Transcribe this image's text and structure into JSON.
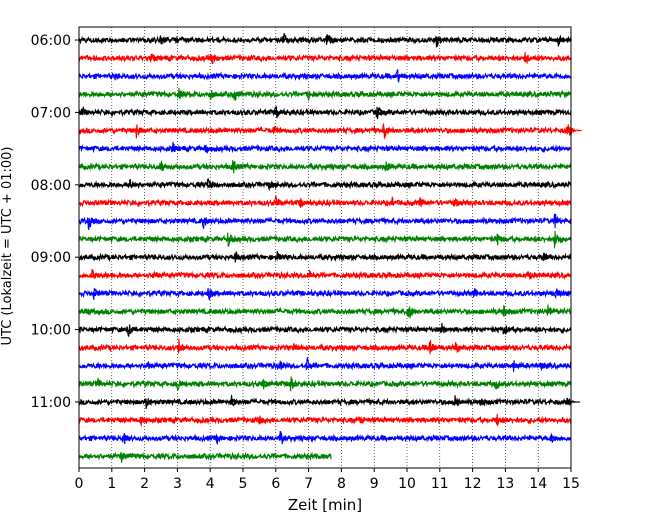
{
  "chart_data": {
    "type": "line",
    "title": "",
    "xlabel": "Zeit  [min]",
    "ylabel": "UTC (Lokalzeit = UTC + 01:00)",
    "xlim": [
      0,
      15
    ],
    "x_ticks": [
      "0",
      "1",
      "2",
      "3",
      "4",
      "5",
      "6",
      "7",
      "8",
      "9",
      "10",
      "11",
      "12",
      "13",
      "14",
      "15"
    ],
    "y_ticks": [
      "06:00",
      "07:00",
      "08:00",
      "09:00",
      "10:00",
      "11:00"
    ],
    "grid": "vertical dotted at each minute",
    "legend": "none",
    "colors": [
      "#000000",
      "#ff0000",
      "#0000ff",
      "#008000"
    ],
    "traces": [
      {
        "start": "06:00",
        "end_min": 15,
        "color": "#000000",
        "events": [
          2.5,
          6.25,
          7.55,
          10.9,
          14.6
        ]
      },
      {
        "start": "06:15",
        "end_min": 15,
        "color": "#ff0000",
        "events": [
          2.2,
          4.05,
          13.6
        ]
      },
      {
        "start": "06:30",
        "end_min": 15,
        "color": "#0000ff",
        "events": [
          1.1,
          9.7
        ]
      },
      {
        "start": "06:45",
        "end_min": 15,
        "color": "#008000",
        "events": [
          3.05,
          4.0,
          4.75,
          7.0
        ]
      },
      {
        "start": "07:00",
        "end_min": 15,
        "color": "#000000",
        "events": [
          0.1,
          6.0,
          9.1
        ]
      },
      {
        "start": "07:15",
        "end_min": 15,
        "color": "#ff0000",
        "events": [
          1.75,
          5.95,
          9.3,
          14.9
        ]
      },
      {
        "start": "07:30",
        "end_min": 15,
        "color": "#0000ff",
        "events": [
          2.85,
          3.85
        ]
      },
      {
        "start": "07:45",
        "end_min": 15,
        "color": "#008000",
        "events": [
          2.5,
          4.7,
          9.35
        ]
      },
      {
        "start": "08:00",
        "end_min": 15,
        "color": "#000000",
        "events": [
          1.55,
          3.95,
          5.8
        ]
      },
      {
        "start": "08:15",
        "end_min": 15,
        "color": "#ff0000",
        "events": [
          6.0,
          6.75,
          9.55,
          10.4,
          11.45
        ]
      },
      {
        "start": "08:30",
        "end_min": 15,
        "color": "#0000ff",
        "events": [
          0.3,
          3.8,
          14.5
        ]
      },
      {
        "start": "08:45",
        "end_min": 15,
        "color": "#008000",
        "events": [
          4.55,
          12.75,
          14.5
        ]
      },
      {
        "start": "09:00",
        "end_min": 15,
        "color": "#000000",
        "events": [
          4.75,
          6.05,
          14.15
        ]
      },
      {
        "start": "09:15",
        "end_min": 15,
        "color": "#ff0000",
        "events": [
          0.4,
          2.3,
          7.0,
          13.7
        ]
      },
      {
        "start": "09:30",
        "end_min": 15,
        "color": "#0000ff",
        "events": [
          0.45,
          3.95,
          12.05,
          14.55
        ]
      },
      {
        "start": "09:45",
        "end_min": 15,
        "color": "#008000",
        "events": [
          0.15,
          10.05,
          12.95,
          14.3
        ]
      },
      {
        "start": "10:00",
        "end_min": 15,
        "color": "#000000",
        "events": [
          1.5,
          11.05,
          12.95
        ]
      },
      {
        "start": "10:15",
        "end_min": 15,
        "color": "#ff0000",
        "events": [
          3.05,
          6.55,
          10.7,
          11.5
        ]
      },
      {
        "start": "10:30",
        "end_min": 15,
        "color": "#0000ff",
        "events": [
          2.1,
          6.15,
          6.95,
          13.25,
          14.1
        ]
      },
      {
        "start": "10:45",
        "end_min": 15,
        "color": "#008000",
        "events": [
          0.55,
          3.0,
          5.6,
          6.45,
          12.7
        ]
      },
      {
        "start": "11:00",
        "end_min": 15,
        "color": "#000000",
        "events": [
          2.05,
          4.65,
          11.45,
          12.25,
          14.85
        ]
      },
      {
        "start": "11:15",
        "end_min": 15,
        "color": "#ff0000",
        "events": [
          1.9,
          5.5,
          8.55,
          12.75
        ]
      },
      {
        "start": "11:30",
        "end_min": 15,
        "color": "#0000ff",
        "events": [
          1.35,
          4.2,
          6.15,
          14.4
        ]
      },
      {
        "start": "11:45",
        "end_min": 7.7,
        "color": "#008000",
        "events": [
          1.3
        ]
      }
    ]
  }
}
